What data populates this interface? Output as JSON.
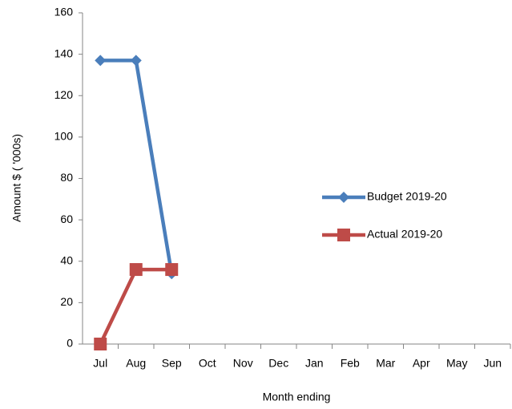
{
  "chart_data": {
    "type": "line",
    "x_label": "Month ending",
    "y_label": "Amount $ ( '000s)",
    "categories": [
      "Jul",
      "Aug",
      "Sep",
      "Oct",
      "Nov",
      "Dec",
      "Jan",
      "Feb",
      "Mar",
      "Apr",
      "May",
      "Jun"
    ],
    "series": [
      {
        "name": "Budget 2019-20",
        "color": "#4a7ebb",
        "marker": "diamond",
        "values": [
          137,
          137,
          34,
          null,
          null,
          null,
          null,
          null,
          null,
          null,
          null,
          null
        ]
      },
      {
        "name": "Actual 2019-20",
        "color": "#be4b48",
        "marker": "square",
        "values": [
          0,
          36,
          36,
          null,
          null,
          null,
          null,
          null,
          null,
          null,
          null,
          null
        ]
      }
    ],
    "ylim": [
      0,
      160
    ],
    "yticks": [
      0,
      20,
      40,
      60,
      80,
      100,
      120,
      140,
      160
    ],
    "grid": false,
    "legend": "right"
  }
}
